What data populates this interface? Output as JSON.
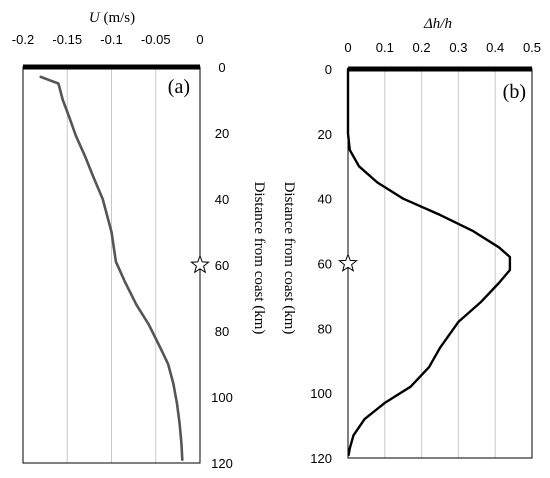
{
  "chart_data": [
    {
      "type": "line",
      "panel_label": "(a)",
      "xlabel_var": "U",
      "xlabel_unit": " (m/s)",
      "ylabel": "Distance from coast (km)",
      "xlim": [
        -0.2,
        0
      ],
      "ylim": [
        0,
        120
      ],
      "x_ticks": [
        "-0.2",
        "-0.15",
        "-0.1",
        "-0.05",
        "0"
      ],
      "y_ticks": [
        "0",
        "20",
        "40",
        "60",
        "80",
        "100",
        "120"
      ],
      "y_tick_values": [
        0,
        20,
        40,
        60,
        80,
        100,
        120
      ],
      "grid": true,
      "y_axis_side": "right",
      "x_axis_position": "top",
      "line_color": "#555555",
      "marker": {
        "symbol": "star",
        "x": 0,
        "y": 60
      },
      "series": [
        {
          "x": [
            -0.18,
            -0.17,
            -0.16,
            -0.155,
            -0.148,
            -0.14,
            -0.13,
            -0.121,
            -0.11,
            -0.1,
            -0.095,
            -0.085,
            -0.072,
            -0.058,
            -0.045,
            -0.036,
            -0.03,
            -0.026,
            -0.023,
            -0.021,
            -0.02
          ],
          "y": [
            3,
            4,
            5,
            10,
            15,
            21,
            27,
            33,
            40,
            50,
            59,
            65,
            72,
            78,
            85,
            90,
            96,
            102,
            108,
            114,
            119
          ]
        }
      ]
    },
    {
      "type": "line",
      "panel_label": "(b)",
      "xlabel_var": "Δh/h",
      "ylabel": "Distance from coast (km)",
      "xlim": [
        0,
        0.5
      ],
      "ylim": [
        0,
        120
      ],
      "x_ticks": [
        "0",
        "0.1",
        "0.2",
        "0.3",
        "0.4",
        "0.5"
      ],
      "y_ticks": [
        "0",
        "20",
        "40",
        "60",
        "80",
        "100",
        "120"
      ],
      "y_tick_values": [
        0,
        20,
        40,
        60,
        80,
        100,
        120
      ],
      "grid": true,
      "y_axis_side": "left",
      "x_axis_position": "top",
      "line_color": "#000000",
      "marker": {
        "symbol": "star",
        "x": 0,
        "y": 60
      },
      "series": [
        {
          "x": [
            0,
            0,
            0.005,
            0.03,
            0.08,
            0.15,
            0.25,
            0.34,
            0.41,
            0.44,
            0.44,
            0.41,
            0.36,
            0.3,
            0.25,
            0.22,
            0.17,
            0.1,
            0.045,
            0.015,
            0.005,
            0.002
          ],
          "y": [
            0,
            20,
            25,
            30,
            35,
            40,
            45,
            50,
            55,
            58,
            62,
            66,
            72,
            78,
            86,
            92,
            98,
            103,
            108,
            113,
            117,
            119
          ]
        }
      ]
    }
  ]
}
